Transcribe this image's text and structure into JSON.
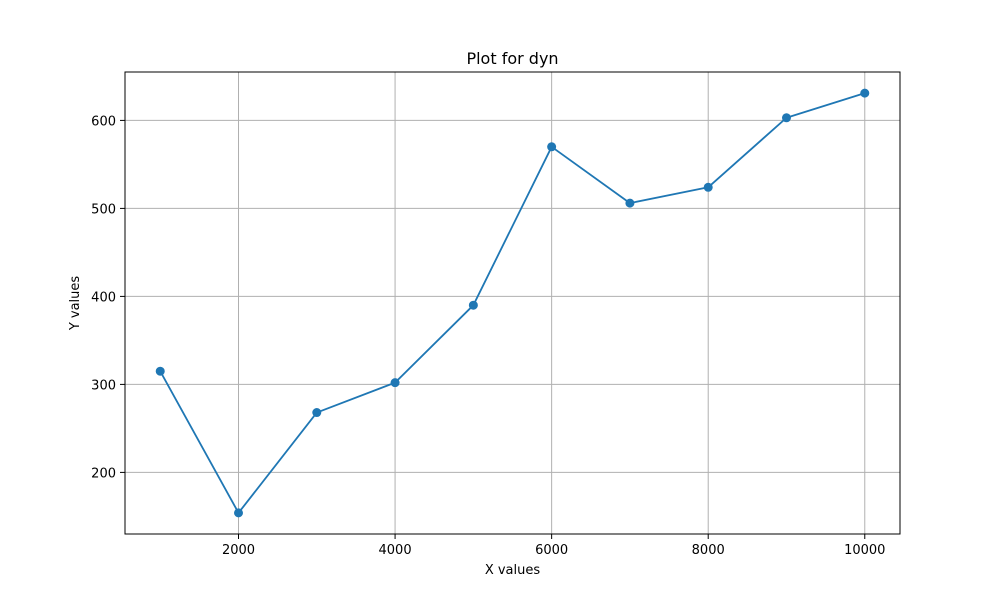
{
  "chart_data": {
    "type": "line",
    "title": "Plot for dyn",
    "xlabel": "X values",
    "ylabel": "Y values",
    "x": [
      1000,
      2000,
      3000,
      4000,
      5000,
      6000,
      7000,
      8000,
      9000,
      10000
    ],
    "series": [
      {
        "values": [
          315,
          154,
          268,
          302,
          390,
          570,
          506,
          524,
          603,
          631
        ]
      }
    ],
    "xticks": [
      2000,
      4000,
      6000,
      8000,
      10000
    ],
    "yticks": [
      200,
      300,
      400,
      500,
      600
    ],
    "xlim": [
      550,
      10450
    ],
    "ylim": [
      130,
      655
    ],
    "grid": true,
    "line_color": "#1f77b4",
    "grid_color": "#b0b0b0"
  }
}
